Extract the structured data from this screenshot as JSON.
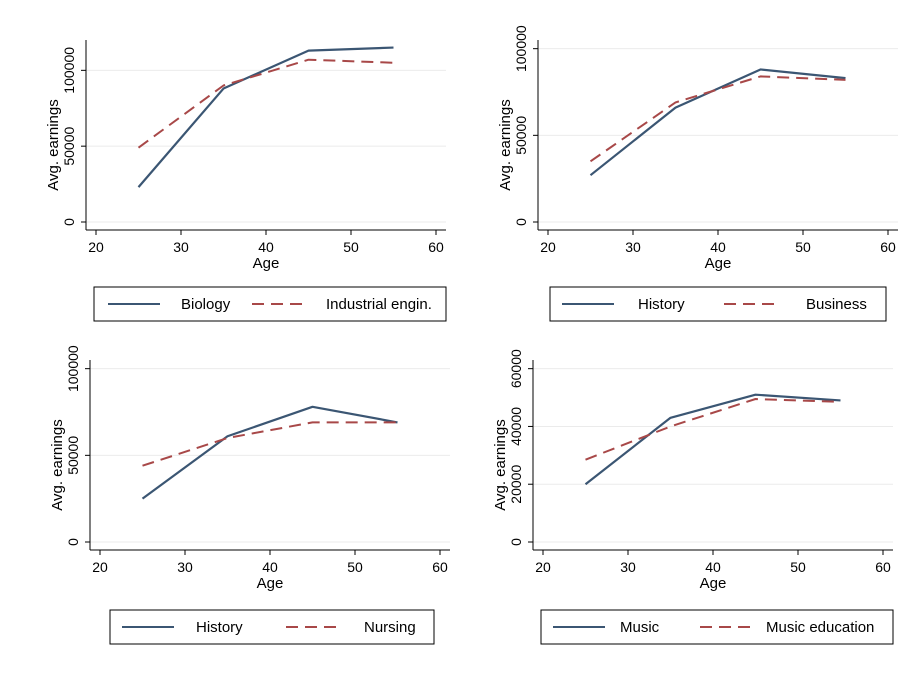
{
  "colors": {
    "series1": "#3b5673",
    "series2": "#a84848",
    "grid": "#ebebeb",
    "axis": "#000000",
    "legend_border": "#000000"
  },
  "chart_data": [
    {
      "type": "line",
      "xlabel": "Age",
      "ylabel": "Avg. earnings",
      "xlim": [
        20,
        60
      ],
      "ylim": [
        0,
        120000
      ],
      "xticks": [
        20,
        30,
        40,
        50,
        60
      ],
      "yticks": [
        0,
        50000,
        100000
      ],
      "grid": true,
      "legend": "bottom",
      "x": [
        25,
        35,
        45,
        55
      ],
      "series": [
        {
          "name": "Biology",
          "style": "solid",
          "values": [
            23000,
            88000,
            113000,
            115000
          ]
        },
        {
          "name": "Industrial engin.",
          "style": "dashed",
          "values": [
            49000,
            90000,
            107000,
            105000
          ]
        }
      ]
    },
    {
      "type": "line",
      "xlabel": "Age",
      "ylabel": "Avg. earnings",
      "xlim": [
        20,
        60
      ],
      "ylim": [
        0,
        105000
      ],
      "xticks": [
        20,
        30,
        40,
        50,
        60
      ],
      "yticks": [
        0,
        50000,
        100000
      ],
      "grid": true,
      "legend": "bottom",
      "x": [
        25,
        35,
        45,
        55
      ],
      "series": [
        {
          "name": "History",
          "style": "solid",
          "values": [
            27000,
            66000,
            88000,
            83000
          ]
        },
        {
          "name": "Business",
          "style": "dashed",
          "values": [
            35000,
            69000,
            84000,
            82000
          ]
        }
      ]
    },
    {
      "type": "line",
      "xlabel": "Age",
      "ylabel": "Avg. earnings",
      "xlim": [
        20,
        60
      ],
      "ylim": [
        0,
        105000
      ],
      "xticks": [
        20,
        30,
        40,
        50,
        60
      ],
      "yticks": [
        0,
        50000,
        100000
      ],
      "grid": true,
      "legend": "bottom",
      "x": [
        25,
        35,
        45,
        55
      ],
      "series": [
        {
          "name": "History",
          "style": "solid",
          "values": [
            25000,
            61000,
            78000,
            69000
          ]
        },
        {
          "name": "Nursing",
          "style": "dashed",
          "values": [
            44000,
            60000,
            69000,
            69000
          ]
        }
      ]
    },
    {
      "type": "line",
      "xlabel": "Age",
      "ylabel": "Avg. earnings",
      "xlim": [
        20,
        60
      ],
      "ylim": [
        0,
        63000
      ],
      "xticks": [
        20,
        30,
        40,
        50,
        60
      ],
      "yticks": [
        0,
        20000,
        40000,
        60000
      ],
      "grid": true,
      "legend": "bottom",
      "x": [
        25,
        35,
        45,
        55
      ],
      "series": [
        {
          "name": "Music",
          "style": "solid",
          "values": [
            20000,
            43000,
            51000,
            49000
          ]
        },
        {
          "name": "Music education",
          "style": "dashed",
          "values": [
            28500,
            40000,
            49500,
            48500
          ]
        }
      ]
    }
  ]
}
